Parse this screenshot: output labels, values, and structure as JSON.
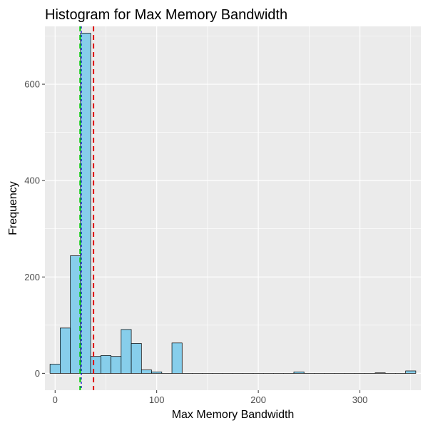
{
  "chart_data": {
    "type": "bar",
    "title": "Histogram for Max Memory Bandwidth",
    "xlabel": "Max Memory Bandwidth",
    "ylabel": "Frequency",
    "xlim": [
      -10,
      360
    ],
    "ylim": [
      -35,
      720
    ],
    "x_ticks": [
      0,
      100,
      200,
      300
    ],
    "y_ticks": [
      0,
      200,
      400,
      600
    ],
    "grid": true,
    "bin_width": 10,
    "bins": [
      {
        "x": 0,
        "count": 19
      },
      {
        "x": 10,
        "count": 94
      },
      {
        "x": 20,
        "count": 244
      },
      {
        "x": 30,
        "count": 706
      },
      {
        "x": 40,
        "count": 35
      },
      {
        "x": 50,
        "count": 37
      },
      {
        "x": 60,
        "count": 35
      },
      {
        "x": 70,
        "count": 91
      },
      {
        "x": 80,
        "count": 62
      },
      {
        "x": 90,
        "count": 7
      },
      {
        "x": 100,
        "count": 3
      },
      {
        "x": 110,
        "count": 0
      },
      {
        "x": 120,
        "count": 63
      },
      {
        "x": 130,
        "count": 0
      },
      {
        "x": 140,
        "count": 0
      },
      {
        "x": 150,
        "count": 0
      },
      {
        "x": 160,
        "count": 0
      },
      {
        "x": 170,
        "count": 0
      },
      {
        "x": 180,
        "count": 0
      },
      {
        "x": 190,
        "count": 0
      },
      {
        "x": 200,
        "count": 0
      },
      {
        "x": 210,
        "count": 0
      },
      {
        "x": 220,
        "count": 0
      },
      {
        "x": 230,
        "count": 0
      },
      {
        "x": 240,
        "count": 3
      },
      {
        "x": 250,
        "count": 0
      },
      {
        "x": 260,
        "count": 0
      },
      {
        "x": 270,
        "count": 0
      },
      {
        "x": 280,
        "count": 0
      },
      {
        "x": 290,
        "count": 0
      },
      {
        "x": 300,
        "count": 0
      },
      {
        "x": 310,
        "count": 0
      },
      {
        "x": 320,
        "count": 1
      },
      {
        "x": 330,
        "count": 0
      },
      {
        "x": 340,
        "count": 0
      },
      {
        "x": 350,
        "count": 5
      }
    ],
    "reference_lines": [
      {
        "x": 24.6,
        "color": "#00CC00",
        "dash": "long"
      },
      {
        "x": 25.8,
        "color": "#0000CC",
        "dash": "short"
      },
      {
        "x": 37.8,
        "color": "#DD0000",
        "dash": "long"
      }
    ],
    "colors": {
      "bar_fill": "#87CEEB",
      "bar_stroke": "#000000",
      "panel_background": "#EBEBEB",
      "grid": "#FFFFFF"
    }
  }
}
